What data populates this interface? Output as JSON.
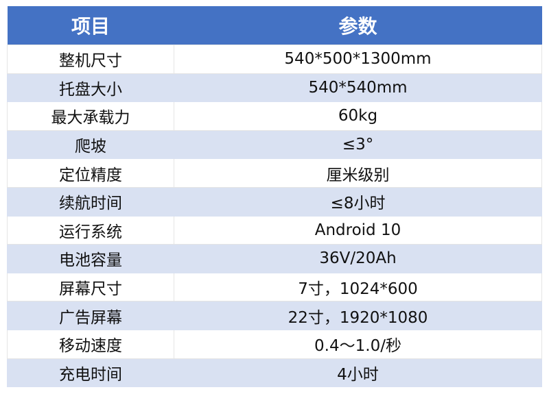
{
  "header": {
    "col1": "项目",
    "col2": "参数"
  },
  "colors": {
    "header_bg": "#4472C4",
    "alt_row_bg": "#D9E1F2"
  },
  "rows": [
    {
      "item": "整机尺寸",
      "value": "540*500*1300mm"
    },
    {
      "item": "托盘大小",
      "value": "540*540mm"
    },
    {
      "item": "最大承载力",
      "value": "60kg"
    },
    {
      "item": "爬坡",
      "value": "≤3°"
    },
    {
      "item": "定位精度",
      "value": "厘米级别"
    },
    {
      "item": "续航时间",
      "value": "≤8小时"
    },
    {
      "item": "运行系统",
      "value": "Android 10"
    },
    {
      "item": "电池容量",
      "value": "36V/20Ah"
    },
    {
      "item": "屏幕尺寸",
      "value": "7寸，1024*600"
    },
    {
      "item": "广告屏幕",
      "value": "22寸，1920*1080"
    },
    {
      "item": "移动速度",
      "value": "0.4～1.0/秒"
    },
    {
      "item": "充电时间",
      "value": "4小时"
    }
  ]
}
